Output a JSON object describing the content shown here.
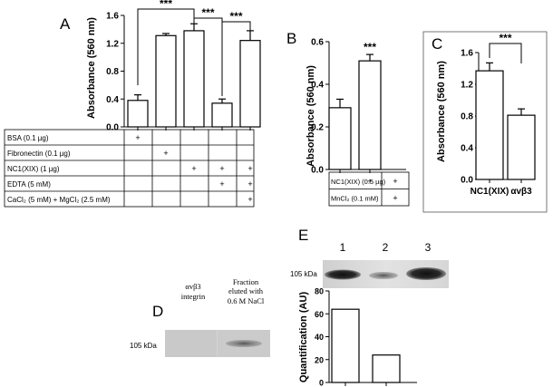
{
  "panels": {
    "A": {
      "letter": "A",
      "chart_data": {
        "type": "bar",
        "ylabel": "Absorbance (560 nm)",
        "ylim": [
          0,
          1.6
        ],
        "yticks": [
          "0.0",
          "0.4",
          "0.8",
          "1.2",
          "1.6"
        ],
        "values": [
          0.38,
          1.31,
          1.38,
          0.34,
          1.24
        ],
        "errors": [
          0.08,
          0.03,
          0.1,
          0.06,
          0.14
        ],
        "significance": [
          "***",
          "***",
          "***"
        ]
      },
      "table": {
        "rows": [
          {
            "label": "BSA (0.1 µg)",
            "marks": [
              "+",
              "",
              "",
              "",
              ""
            ]
          },
          {
            "label": "Fibronectin (0.1 µg)",
            "marks": [
              "",
              "+",
              "",
              "",
              ""
            ]
          },
          {
            "label": "NC1(XIX)  (1 µg)",
            "marks": [
              "",
              "",
              "+",
              "+",
              "+"
            ]
          },
          {
            "label": "EDTA (5 mM)",
            "marks": [
              "",
              "",
              "",
              "+",
              "+"
            ]
          },
          {
            "label": "CaCl₂ (5 mM) + MgCl₂ (2.5 mM)",
            "marks": [
              "",
              "",
              "",
              "",
              "+"
            ]
          }
        ]
      }
    },
    "B": {
      "letter": "B",
      "chart_data": {
        "type": "bar",
        "ylabel": "Absorbance (560 nm)",
        "ylim": [
          0,
          0.6
        ],
        "yticks": [
          "0.0",
          "0.2",
          "0.4",
          "0.6"
        ],
        "values": [
          0.29,
          0.51
        ],
        "errors": [
          0.04,
          0.03
        ],
        "significance": [
          "***"
        ]
      },
      "table": {
        "rows": [
          {
            "label": "NC1(XIX) (0.5 µg)",
            "marks": [
              "+",
              "+"
            ]
          },
          {
            "label": "MnCl₂ (0.1 mM)",
            "marks": [
              "",
              "+"
            ]
          }
        ]
      }
    },
    "C": {
      "letter": "C",
      "chart_data": {
        "type": "bar",
        "ylabel": "Absorbance (560 nm)",
        "ylim": [
          0,
          1.6
        ],
        "yticks": [
          "0.0",
          "0.4",
          "0.8",
          "1.2",
          "1.6"
        ],
        "categories": [
          "NC1(XIX)",
          "αvβ3"
        ],
        "values": [
          1.37,
          0.81
        ],
        "errors": [
          0.1,
          0.08
        ],
        "significance": [
          "***"
        ]
      }
    },
    "D": {
      "letter": "D",
      "lane1_label_line1": "αvβ3",
      "lane1_label_line2": "integrin",
      "lane2_label_line1": "Fraction",
      "lane2_label_line2": "eluted with",
      "lane2_label_line3": "0.6 M NaCl",
      "marker": "105 kDa"
    },
    "E": {
      "letter": "E",
      "lanes": [
        "1",
        "2",
        "3"
      ],
      "marker": "105 kDa",
      "chart_data": {
        "type": "bar",
        "ylabel": "Quantification (AU)",
        "ylim": [
          0,
          80
        ],
        "yticks": [
          "0",
          "20",
          "40",
          "60",
          "80"
        ],
        "values": [
          64,
          24
        ]
      }
    }
  }
}
